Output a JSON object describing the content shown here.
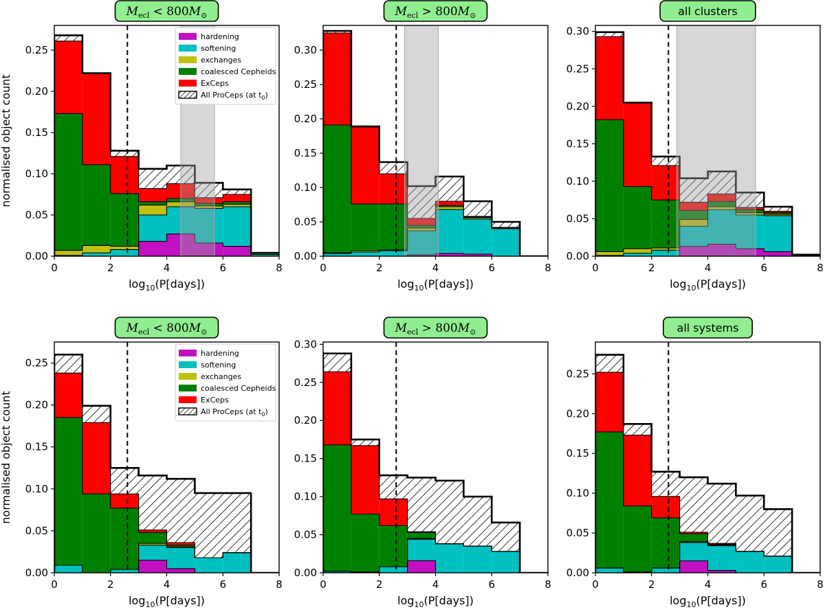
{
  "figure": {
    "ylabel": "normalised object count",
    "xlabel_main": "log",
    "xlabel_sub": "10",
    "xlabel_rest": "(P[days])",
    "bin_edges": [
      0,
      1,
      2,
      3,
      4,
      5,
      6,
      7,
      8
    ],
    "xlim": [
      0,
      8
    ],
    "xticks": [
      "0",
      "2",
      "4",
      "6",
      "8"
    ],
    "cutoff_period_log": 2.6
  },
  "legend": {
    "items": [
      {
        "key": "hardening",
        "label": "hardening",
        "color": "#c010c0"
      },
      {
        "key": "softening",
        "label": "softening",
        "color": "#00c0c0"
      },
      {
        "key": "exchanges",
        "label": "exchanges",
        "color": "#c0c010"
      },
      {
        "key": "coalesced",
        "label": "coalesced Cepheids",
        "color": "#008000"
      },
      {
        "key": "exceps",
        "label": "ExCeps",
        "color": "#ff0000"
      }
    ],
    "hatched_label_main": "All ProCeps (at t",
    "hatched_label_sub": "0",
    "hatched_label_end": ")"
  },
  "chart_data": [
    {
      "type": "bar",
      "title": {
        "kind": "math",
        "m": "M",
        "sub": "ecl",
        "rel": "< 800",
        "m2": "M",
        "sub2": "⊙"
      },
      "ylim": [
        0,
        0.28
      ],
      "yticks": [
        "0.00",
        "0.05",
        "0.10",
        "0.15",
        "0.20",
        "0.25"
      ],
      "show_ylabel": true,
      "show_legend": true,
      "shade": [
        4.5,
        5.7
      ],
      "series": {
        "hardening": [
          0,
          0,
          0,
          0.018,
          0.027,
          0.016,
          0.012,
          0
        ],
        "softening": [
          0.001,
          0.004,
          0.008,
          0.032,
          0.033,
          0.042,
          0.048,
          0.002
        ],
        "exchanges": [
          0.006,
          0.009,
          0.004,
          0.012,
          0.006,
          0.003,
          0.003,
          0.002
        ],
        "coalesced": [
          0.166,
          0.098,
          0.064,
          0.004,
          0.004,
          0.003,
          0.003,
          0
        ],
        "exceps": [
          0.088,
          0.111,
          0.045,
          0.016,
          0.018,
          0.007,
          0.009,
          0
        ]
      },
      "total": [
        0.268,
        0.222,
        0.128,
        0.106,
        0.11,
        0.089,
        0.081,
        0.004
      ]
    },
    {
      "type": "bar",
      "title": {
        "kind": "math",
        "m": "M",
        "sub": "ecl",
        "rel": "> 800",
        "m2": "M",
        "sub2": "⊙"
      },
      "ylim": [
        0,
        0.336
      ],
      "yticks": [
        "0.00",
        "0.05",
        "0.10",
        "0.15",
        "0.20",
        "0.25",
        "0.30"
      ],
      "show_ylabel": false,
      "show_legend": false,
      "shade": [
        2.9,
        4.1
      ],
      "series": {
        "hardening": [
          0,
          0,
          0,
          0.002,
          0.004,
          0.003,
          0,
          0
        ],
        "softening": [
          0.004,
          0.006,
          0.008,
          0.035,
          0.064,
          0.051,
          0.04,
          0
        ],
        "exchanges": [
          0.001,
          0.002,
          0.001,
          0.004,
          0.004,
          0.002,
          0.001,
          0
        ],
        "coalesced": [
          0.186,
          0.068,
          0.067,
          0.004,
          0.002,
          0.001,
          0.001,
          0
        ],
        "exceps": [
          0.134,
          0.112,
          0.044,
          0.01,
          0.006,
          0.001,
          0,
          0
        ]
      },
      "total": [
        0.328,
        0.189,
        0.137,
        0.102,
        0.116,
        0.08,
        0.05,
        0
      ]
    },
    {
      "type": "bar",
      "title": {
        "kind": "text",
        "text": "all clusters"
      },
      "ylim": [
        0,
        0.308
      ],
      "yticks": [
        "0.00",
        "0.05",
        "0.10",
        "0.15",
        "0.20",
        "0.25",
        "0.30"
      ],
      "show_ylabel": false,
      "show_legend": false,
      "shade": [
        2.9,
        5.7
      ],
      "series": {
        "hardening": [
          0,
          0,
          0,
          0.013,
          0.016,
          0.01,
          0.006,
          0
        ],
        "softening": [
          0.001,
          0.004,
          0.008,
          0.027,
          0.046,
          0.045,
          0.048,
          0.001
        ],
        "exchanges": [
          0.005,
          0.006,
          0.003,
          0.009,
          0.004,
          0.003,
          0.002,
          0.001
        ],
        "coalesced": [
          0.176,
          0.083,
          0.064,
          0.012,
          0.007,
          0.004,
          0.002,
          0
        ],
        "exceps": [
          0.111,
          0.112,
          0.046,
          0.011,
          0.01,
          0.003,
          0.002,
          0
        ]
      },
      "total": [
        0.299,
        0.205,
        0.133,
        0.104,
        0.113,
        0.085,
        0.066,
        0.002
      ]
    },
    {
      "type": "bar",
      "title": {
        "kind": "math",
        "m": "M",
        "sub": "ecl",
        "rel": "< 800",
        "m2": "M",
        "sub2": "⊙"
      },
      "ylim": [
        0,
        0.275
      ],
      "yticks": [
        "0.00",
        "0.05",
        "0.10",
        "0.15",
        "0.20",
        "0.25"
      ],
      "show_ylabel": true,
      "show_legend": true,
      "shade": null,
      "series": {
        "hardening": [
          0,
          0,
          0,
          0.015,
          0.005,
          0,
          0,
          0
        ],
        "softening": [
          0.009,
          0,
          0.004,
          0.018,
          0.025,
          0.018,
          0.024,
          0
        ],
        "exchanges": [
          0,
          0,
          0,
          0.002,
          0.001,
          0,
          0,
          0
        ],
        "coalesced": [
          0.176,
          0.094,
          0.073,
          0.013,
          0.002,
          0,
          0,
          0
        ],
        "exceps": [
          0.053,
          0.085,
          0.017,
          0.003,
          0.003,
          0,
          0,
          0
        ]
      },
      "total": [
        0.26,
        0.199,
        0.125,
        0.116,
        0.112,
        0.095,
        0.095,
        0
      ]
    },
    {
      "type": "bar",
      "title": {
        "kind": "math",
        "m": "M",
        "sub": "ecl",
        "rel": "> 800",
        "m2": "M",
        "sub2": "⊙"
      },
      "ylim": [
        0,
        0.303
      ],
      "yticks": [
        "0.00",
        "0.05",
        "0.10",
        "0.15",
        "0.20",
        "0.25",
        "0.30"
      ],
      "show_ylabel": false,
      "show_legend": false,
      "shade": null,
      "series": {
        "hardening": [
          0,
          0,
          0,
          0.016,
          0,
          0,
          0,
          0
        ],
        "softening": [
          0.002,
          0.001,
          0.008,
          0.028,
          0.038,
          0.035,
          0.028,
          0
        ],
        "exchanges": [
          0,
          0,
          0,
          0.001,
          0,
          0,
          0,
          0
        ],
        "coalesced": [
          0.166,
          0.076,
          0.054,
          0.008,
          0,
          0,
          0,
          0
        ],
        "exceps": [
          0.096,
          0.09,
          0.035,
          0.001,
          0,
          0,
          0,
          0
        ]
      },
      "total": [
        0.288,
        0.175,
        0.128,
        0.125,
        0.121,
        0.1,
        0.066,
        0
      ]
    },
    {
      "type": "bar",
      "title": {
        "kind": "text",
        "text": "all systems"
      },
      "ylim": [
        0,
        0.29
      ],
      "yticks": [
        "0.00",
        "0.05",
        "0.10",
        "0.15",
        "0.20",
        "0.25"
      ],
      "show_ylabel": false,
      "show_legend": false,
      "shade": null,
      "series": {
        "hardening": [
          0,
          0,
          0,
          0.015,
          0.003,
          0,
          0,
          0
        ],
        "softening": [
          0.006,
          0.001,
          0.006,
          0.023,
          0.031,
          0.027,
          0.021,
          0
        ],
        "exchanges": [
          0,
          0,
          0,
          0.001,
          0.001,
          0,
          0,
          0
        ],
        "coalesced": [
          0.171,
          0.083,
          0.063,
          0.01,
          0.001,
          0,
          0,
          0
        ],
        "exceps": [
          0.075,
          0.089,
          0.027,
          0.002,
          0.001,
          0,
          0,
          0
        ]
      },
      "total": [
        0.274,
        0.187,
        0.127,
        0.12,
        0.112,
        0.097,
        0.08,
        0
      ]
    }
  ]
}
